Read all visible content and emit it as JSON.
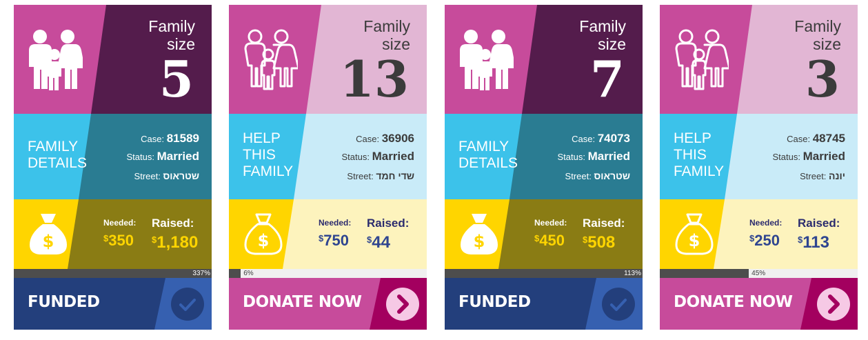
{
  "labels": {
    "family_size_line1": "Family",
    "family_size_line2": "size",
    "case": "Case:",
    "status": "Status:",
    "street": "Street:",
    "needed": "Needed:",
    "raised": "Raised:"
  },
  "cards": [
    {
      "family_size": "5",
      "section_title": [
        "FAMILY",
        "DETAILS"
      ],
      "case_number": "81589",
      "status": "Married",
      "street": "שטראוס",
      "needed_currency": "$",
      "needed": "350",
      "raised_currency": "$",
      "raised": "1,180",
      "progress_percent": 337,
      "progress_label": "337%",
      "action_label": "FUNDED",
      "action_icon": "check-icon"
    },
    {
      "family_size": "13",
      "section_title": [
        "HELP",
        "THIS",
        "FAMILY"
      ],
      "case_number": "36906",
      "status": "Married",
      "street": "שדי חמד",
      "needed_currency": "$",
      "needed": "750",
      "raised_currency": "$",
      "raised": "44",
      "progress_percent": 6,
      "progress_label": "6%",
      "action_label": "DONATE NOW",
      "action_icon": "chevron-right-icon"
    },
    {
      "family_size": "7",
      "section_title": [
        "FAMILY",
        "DETAILS"
      ],
      "case_number": "74073",
      "status": "Married",
      "street": "שטראוס",
      "needed_currency": "$",
      "needed": "450",
      "raised_currency": "$",
      "raised": "508",
      "progress_percent": 113,
      "progress_label": "113%",
      "action_label": "FUNDED",
      "action_icon": "check-icon"
    },
    {
      "family_size": "3",
      "section_title": [
        "HELP",
        "THIS",
        "FAMILY"
      ],
      "case_number": "48745",
      "status": "Married",
      "street": "יונה",
      "needed_currency": "$",
      "needed": "250",
      "raised_currency": "$",
      "raised": "113",
      "progress_percent": 45,
      "progress_label": "45%",
      "action_label": "DONATE NOW",
      "action_icon": "chevron-right-icon"
    }
  ],
  "colors": {
    "funded": {
      "top_left": "#c74b9b",
      "top_right": "#541c4c",
      "top_text": "#ffffff",
      "mid_left": "#3cc2ea",
      "mid_right": "#2a7c92",
      "mid_text": "#ffffff",
      "money_left": "#ffd500",
      "money_right": "#8a7c14",
      "money_label": "#ffffff",
      "money_value": "#ffd500",
      "action_left": "#233f7c",
      "action_right": "#3660b0",
      "action_circle": "#233f7c",
      "action_glyph": "#3660b0",
      "pct_text": "#ffffff"
    },
    "donate": {
      "top_left": "#c74b9b",
      "top_right": "#e2b6d4",
      "top_text": "#3b3b3b",
      "mid_left": "#3cc2ea",
      "mid_right": "#c9ebf8",
      "mid_text": "#3b3b3b",
      "money_left": "#ffd500",
      "money_right": "#fdf3bd",
      "money_label": "#2b2b6e",
      "money_value": "#2f4590",
      "action_left": "#c74b9b",
      "action_right": "#a3005f",
      "action_circle": "#f6c9e5",
      "action_glyph": "#a3005f",
      "pct_text": "#3b3b3b"
    }
  }
}
